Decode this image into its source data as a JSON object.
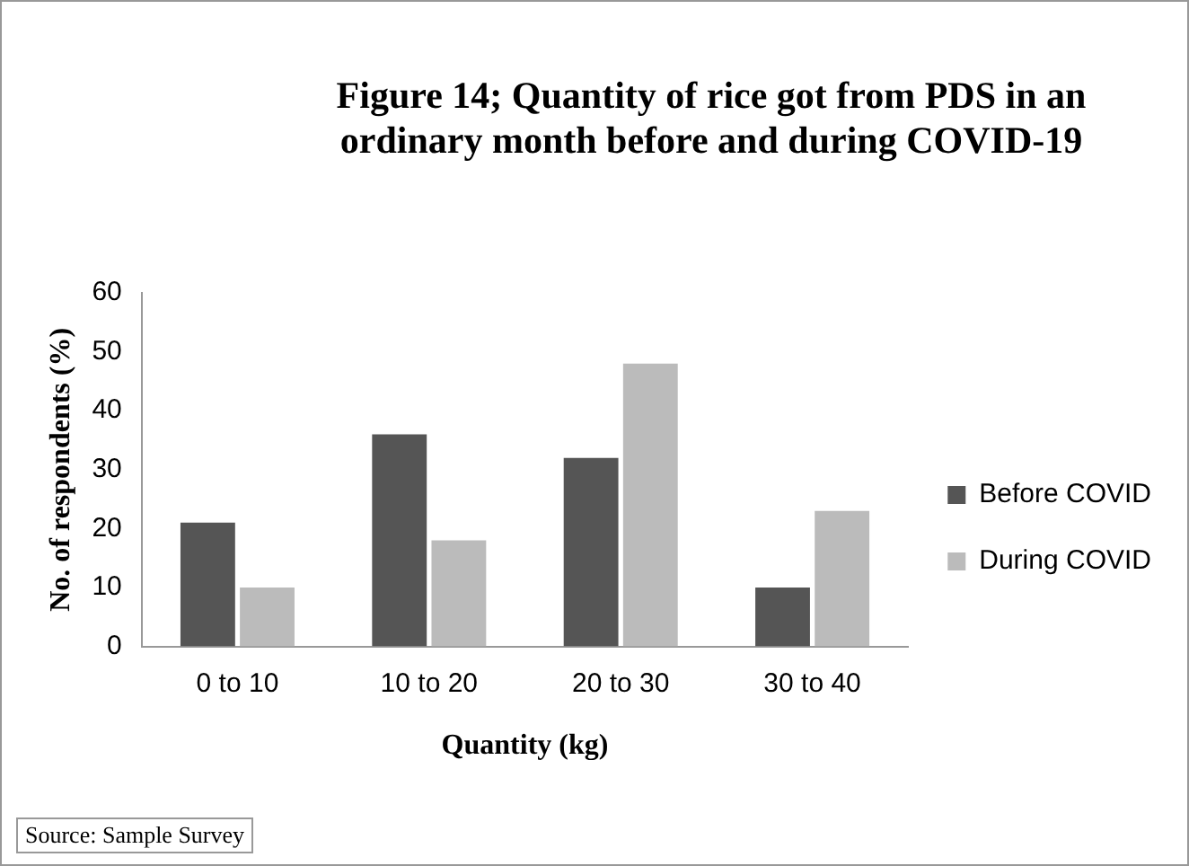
{
  "chart_data": {
    "type": "bar",
    "title": "Figure 14; Quantity of rice got from PDS in an ordinary month before and during COVID-19",
    "xlabel": "Quantity (kg)",
    "ylabel": "No. of respondents (%)",
    "categories": [
      "0 to 10",
      "10 to 20",
      "20 to 30",
      "30 to 40"
    ],
    "series": [
      {
        "name": "Before COVID",
        "color": "#555555",
        "values": [
          21,
          36,
          32,
          10
        ]
      },
      {
        "name": "During COVID",
        "color": "#bbbbbb",
        "values": [
          10,
          18,
          48,
          23
        ]
      }
    ],
    "ylim": [
      0,
      60
    ],
    "yticks": [
      0,
      10,
      20,
      30,
      40,
      50,
      60
    ],
    "grid": false,
    "legend": "right",
    "annotations": [
      "Source: Sample Survey"
    ]
  }
}
